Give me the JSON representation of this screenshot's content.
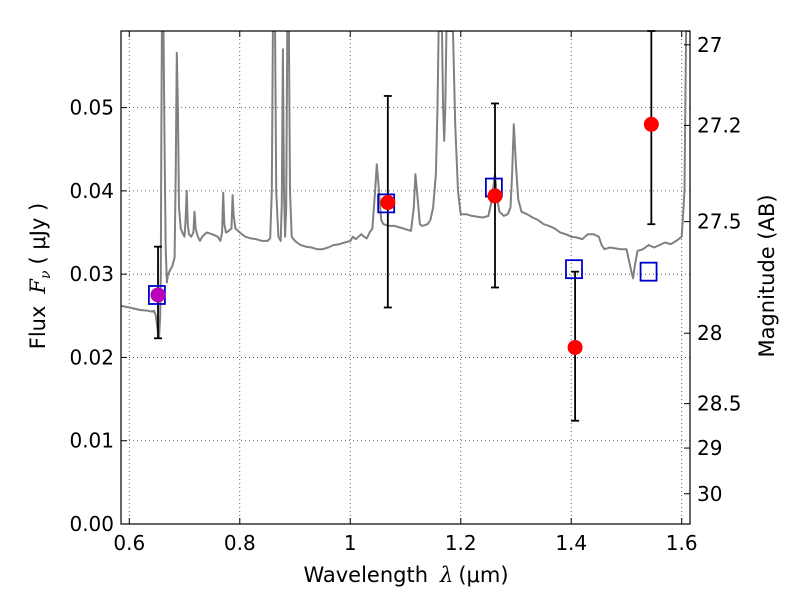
{
  "chart_data": {
    "type": "scatter",
    "xlabel_text": "Wavelength",
    "xlabel_symbol": "λ",
    "xlabel_unit": "(μm)",
    "ylabel_text": "Flux",
    "ylabel_symbol": "F",
    "ylabel_sub": "ν",
    "ylabel_unit": "( μJy )",
    "y2label": "Magnitude (AB)",
    "xlim": [
      0.585,
      1.615
    ],
    "ylim": [
      0.0,
      0.0592
    ],
    "grid": true,
    "x_ticks": [
      {
        "value": 0.6,
        "label": "0.6"
      },
      {
        "value": 0.8,
        "label": "0.8"
      },
      {
        "value": 1.0,
        "label": "1"
      },
      {
        "value": 1.2,
        "label": "1.2"
      },
      {
        "value": 1.4,
        "label": "1.4"
      },
      {
        "value": 1.6,
        "label": "1.6"
      }
    ],
    "y_ticks": [
      {
        "value": 0.0,
        "label": "0.00"
      },
      {
        "value": 0.01,
        "label": "0.01"
      },
      {
        "value": 0.02,
        "label": "0.02"
      },
      {
        "value": 0.03,
        "label": "0.03"
      },
      {
        "value": 0.04,
        "label": "0.04"
      },
      {
        "value": 0.05,
        "label": "0.05"
      }
    ],
    "y2_ticks": [
      {
        "value": 27.0,
        "label": "27"
      },
      {
        "value": 27.2,
        "label": "27.2"
      },
      {
        "value": 27.5,
        "label": "27.5"
      },
      {
        "value": 28.0,
        "label": "28"
      },
      {
        "value": 28.5,
        "label": "28.5"
      },
      {
        "value": 29.0,
        "label": "29"
      },
      {
        "value": 30.0,
        "label": "30"
      }
    ],
    "series": [
      {
        "kind": "line",
        "color": "#808080",
        "points": [
          [
            0.585,
            0.0262
          ],
          [
            0.6,
            0.026
          ],
          [
            0.62,
            0.0257
          ],
          [
            0.635,
            0.0256
          ],
          [
            0.64,
            0.0255
          ],
          [
            0.645,
            0.0256
          ],
          [
            0.648,
            0.025
          ],
          [
            0.65,
            0.024
          ],
          [
            0.652,
            0.023
          ],
          [
            0.654,
            0.0225
          ],
          [
            0.656,
            0.025
          ],
          [
            0.657,
            0.03
          ],
          [
            0.658,
            0.046
          ],
          [
            0.659,
            0.0592
          ],
          [
            0.662,
            0.0592
          ],
          [
            0.664,
            0.045
          ],
          [
            0.666,
            0.033
          ],
          [
            0.668,
            0.029
          ],
          [
            0.67,
            0.03
          ],
          [
            0.674,
            0.0305
          ],
          [
            0.678,
            0.031
          ],
          [
            0.682,
            0.032
          ],
          [
            0.684,
            0.042
          ],
          [
            0.686,
            0.0566
          ],
          [
            0.688,
            0.05
          ],
          [
            0.69,
            0.038
          ],
          [
            0.693,
            0.0355
          ],
          [
            0.696,
            0.035
          ],
          [
            0.7,
            0.0345
          ],
          [
            0.702,
            0.0365
          ],
          [
            0.704,
            0.04
          ],
          [
            0.706,
            0.036
          ],
          [
            0.708,
            0.0348
          ],
          [
            0.712,
            0.0345
          ],
          [
            0.716,
            0.035
          ],
          [
            0.718,
            0.0375
          ],
          [
            0.72,
            0.0355
          ],
          [
            0.724,
            0.0345
          ],
          [
            0.728,
            0.034
          ],
          [
            0.732,
            0.0345
          ],
          [
            0.74,
            0.035
          ],
          [
            0.75,
            0.0348
          ],
          [
            0.76,
            0.0345
          ],
          [
            0.765,
            0.034
          ],
          [
            0.768,
            0.035
          ],
          [
            0.77,
            0.0398
          ],
          [
            0.772,
            0.036
          ],
          [
            0.775,
            0.035
          ],
          [
            0.78,
            0.0352
          ],
          [
            0.785,
            0.0355
          ],
          [
            0.787,
            0.0395
          ],
          [
            0.789,
            0.037
          ],
          [
            0.792,
            0.0355
          ],
          [
            0.8,
            0.035
          ],
          [
            0.81,
            0.0345
          ],
          [
            0.82,
            0.0343
          ],
          [
            0.83,
            0.0342
          ],
          [
            0.84,
            0.034
          ],
          [
            0.85,
            0.034
          ],
          [
            0.855,
            0.0343
          ],
          [
            0.858,
            0.04
          ],
          [
            0.86,
            0.0592
          ],
          [
            0.864,
            0.0592
          ],
          [
            0.866,
            0.04
          ],
          [
            0.87,
            0.0345
          ],
          [
            0.874,
            0.034
          ],
          [
            0.876,
            0.0385
          ],
          [
            0.878,
            0.057
          ],
          [
            0.88,
            0.04
          ],
          [
            0.882,
            0.0345
          ],
          [
            0.884,
            0.038
          ],
          [
            0.886,
            0.0592
          ],
          [
            0.889,
            0.0592
          ],
          [
            0.891,
            0.04
          ],
          [
            0.894,
            0.0345
          ],
          [
            0.9,
            0.034
          ],
          [
            0.91,
            0.0335
          ],
          [
            0.92,
            0.0333
          ],
          [
            0.93,
            0.0332
          ],
          [
            0.94,
            0.033
          ],
          [
            0.95,
            0.033
          ],
          [
            0.96,
            0.0332
          ],
          [
            0.97,
            0.0335
          ],
          [
            0.98,
            0.0336
          ],
          [
            0.99,
            0.0338
          ],
          [
            1.0,
            0.034
          ],
          [
            1.005,
            0.0345
          ],
          [
            1.01,
            0.0342
          ],
          [
            1.015,
            0.0345
          ],
          [
            1.02,
            0.0348
          ],
          [
            1.025,
            0.0345
          ],
          [
            1.03,
            0.0343
          ],
          [
            1.035,
            0.035
          ],
          [
            1.04,
            0.0355
          ],
          [
            1.045,
            0.04
          ],
          [
            1.048,
            0.0432
          ],
          [
            1.052,
            0.04
          ],
          [
            1.056,
            0.0365
          ],
          [
            1.06,
            0.036
          ],
          [
            1.07,
            0.0358
          ],
          [
            1.08,
            0.0358
          ],
          [
            1.09,
            0.0356
          ],
          [
            1.1,
            0.0354
          ],
          [
            1.11,
            0.0352
          ],
          [
            1.115,
            0.038
          ],
          [
            1.118,
            0.042
          ],
          [
            1.122,
            0.039
          ],
          [
            1.126,
            0.036
          ],
          [
            1.13,
            0.0358
          ],
          [
            1.14,
            0.036
          ],
          [
            1.145,
            0.0365
          ],
          [
            1.15,
            0.038
          ],
          [
            1.155,
            0.042
          ],
          [
            1.158,
            0.05
          ],
          [
            1.16,
            0.0592
          ],
          [
            1.166,
            0.0592
          ],
          [
            1.168,
            0.05
          ],
          [
            1.17,
            0.046
          ],
          [
            1.172,
            0.05
          ],
          [
            1.174,
            0.0592
          ],
          [
            1.186,
            0.0592
          ],
          [
            1.19,
            0.048
          ],
          [
            1.195,
            0.04
          ],
          [
            1.2,
            0.0372
          ],
          [
            1.21,
            0.0372
          ],
          [
            1.22,
            0.037
          ],
          [
            1.24,
            0.0368
          ],
          [
            1.25,
            0.037
          ],
          [
            1.255,
            0.0385
          ],
          [
            1.258,
            0.04
          ],
          [
            1.262,
            0.042
          ],
          [
            1.266,
            0.039
          ],
          [
            1.27,
            0.0375
          ],
          [
            1.278,
            0.037
          ],
          [
            1.285,
            0.0372
          ],
          [
            1.29,
            0.038
          ],
          [
            1.293,
            0.042
          ],
          [
            1.296,
            0.048
          ],
          [
            1.3,
            0.043
          ],
          [
            1.304,
            0.039
          ],
          [
            1.31,
            0.0375
          ],
          [
            1.32,
            0.0372
          ],
          [
            1.33,
            0.0368
          ],
          [
            1.34,
            0.0365
          ],
          [
            1.35,
            0.036
          ],
          [
            1.36,
            0.0358
          ],
          [
            1.37,
            0.0355
          ],
          [
            1.38,
            0.035
          ],
          [
            1.39,
            0.0348
          ],
          [
            1.4,
            0.0345
          ],
          [
            1.41,
            0.0344
          ],
          [
            1.42,
            0.0342
          ],
          [
            1.425,
            0.0345
          ],
          [
            1.43,
            0.0348
          ],
          [
            1.44,
            0.0348
          ],
          [
            1.45,
            0.0345
          ],
          [
            1.455,
            0.0335
          ],
          [
            1.46,
            0.033
          ],
          [
            1.47,
            0.0332
          ],
          [
            1.48,
            0.0331
          ],
          [
            1.49,
            0.033
          ],
          [
            1.5,
            0.033
          ],
          [
            1.505,
            0.0315
          ],
          [
            1.51,
            0.03
          ],
          [
            1.512,
            0.0295
          ],
          [
            1.515,
            0.031
          ],
          [
            1.52,
            0.0328
          ],
          [
            1.53,
            0.033
          ],
          [
            1.54,
            0.0335
          ],
          [
            1.55,
            0.0332
          ],
          [
            1.56,
            0.0335
          ],
          [
            1.57,
            0.0338
          ],
          [
            1.58,
            0.0336
          ],
          [
            1.59,
            0.034
          ],
          [
            1.6,
            0.0345
          ],
          [
            1.605,
            0.04
          ],
          [
            1.608,
            0.0592
          ],
          [
            1.615,
            0.0592
          ]
        ]
      },
      {
        "kind": "open-square",
        "color": "#0000cc",
        "points": [
          [
            0.65,
            0.0275
          ],
          [
            1.065,
            0.0385
          ],
          [
            1.26,
            0.0404
          ],
          [
            1.405,
            0.0306
          ],
          [
            1.54,
            0.0303
          ]
        ]
      },
      {
        "kind": "filled-circle",
        "color": "#ff0000",
        "points": [
          {
            "x": 0.652,
            "y": 0.0275,
            "yerr_low": 0.0223,
            "yerr_high": 0.0333,
            "color": "#bb00bb"
          },
          {
            "x": 1.068,
            "y": 0.0386,
            "yerr_low": 0.026,
            "yerr_high": 0.0514
          },
          {
            "x": 1.262,
            "y": 0.0394,
            "yerr_low": 0.0284,
            "yerr_high": 0.0505
          },
          {
            "x": 1.407,
            "y": 0.0212,
            "yerr_low": 0.0124,
            "yerr_high": 0.0303
          },
          {
            "x": 1.545,
            "y": 0.048,
            "yerr_low": 0.036,
            "yerr_high": 0.0592
          }
        ]
      }
    ]
  }
}
